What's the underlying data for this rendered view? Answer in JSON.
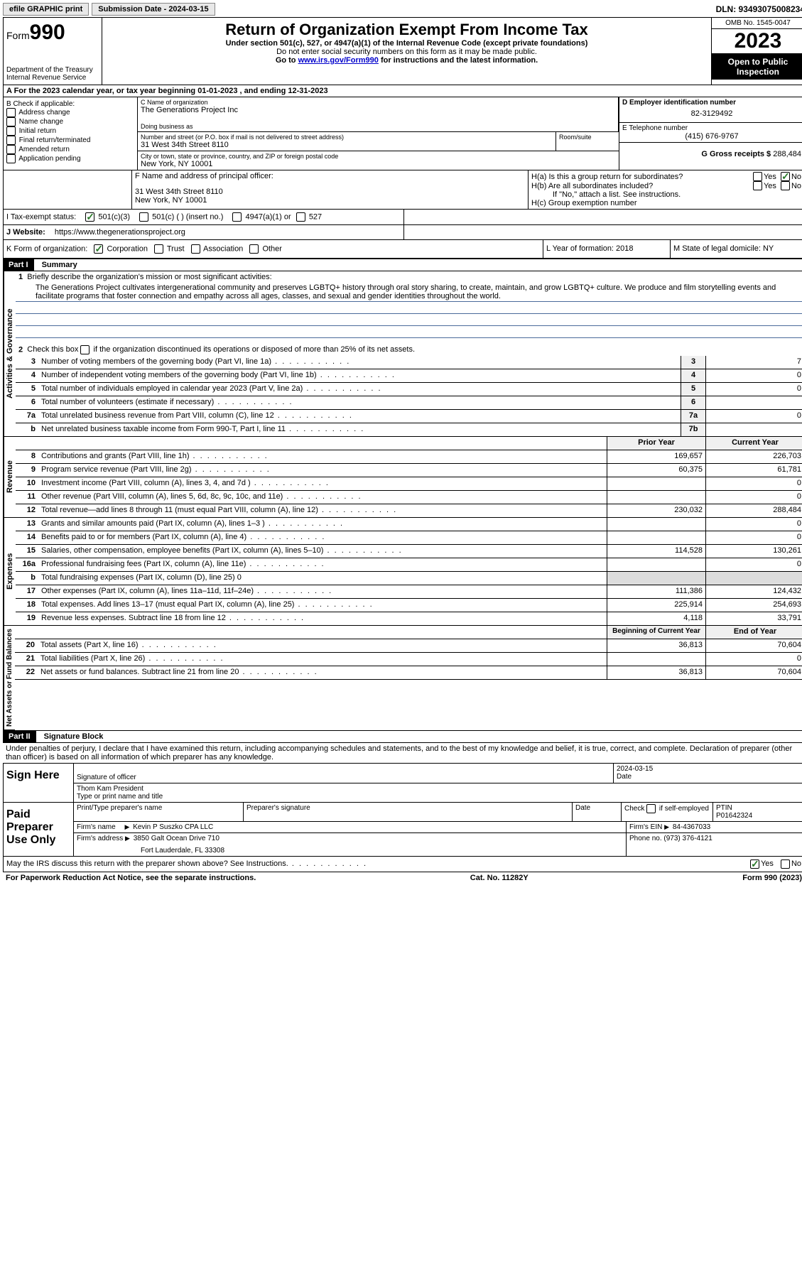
{
  "topbar": {
    "efile": "efile GRAPHIC print",
    "submission_label": "Submission Date - 2024-03-15",
    "dln": "DLN: 93493075008234"
  },
  "header": {
    "form_label": "Form",
    "form_num": "990",
    "dept": "Department of the Treasury",
    "irs": "Internal Revenue Service",
    "title": "Return of Organization Exempt From Income Tax",
    "sub1": "Under section 501(c), 527, or 4947(a)(1) of the Internal Revenue Code (except private foundations)",
    "sub2": "Do not enter social security numbers on this form as it may be made public.",
    "sub3_pre": "Go to ",
    "sub3_link": "www.irs.gov/Form990",
    "sub3_post": " for instructions and the latest information.",
    "omb": "OMB No. 1545-0047",
    "year": "2023",
    "inspection": "Open to Public Inspection"
  },
  "section_a": "A  For the 2023 calendar year, or tax year beginning 01-01-2023    , and ending 12-31-2023",
  "box_b": {
    "label": "B Check if applicable:",
    "opts": [
      "Address change",
      "Name change",
      "Initial return",
      "Final return/terminated",
      "Amended return",
      "Application pending"
    ]
  },
  "box_c": {
    "label": "C Name of organization",
    "name": "The Generations Project Inc",
    "dba": "Doing business as",
    "addr_label": "Number and street (or P.O. box if mail is not delivered to street address)",
    "room": "Room/suite",
    "addr": "31 West 34th Street 8110",
    "city_label": "City or town, state or province, country, and ZIP or foreign postal code",
    "city": "New York, NY  10001"
  },
  "box_d": {
    "label": "D Employer identification number",
    "ein": "82-3129492"
  },
  "box_e": {
    "label": "E Telephone number",
    "phone": "(415) 676-9767"
  },
  "box_g": {
    "label": "G Gross receipts $",
    "amount": "288,484"
  },
  "box_f": {
    "label": "F Name and address of principal officer:",
    "addr1": "31 West 34th Street 8110",
    "addr2": "New York, NY  10001"
  },
  "box_h": {
    "ha": "H(a)  Is this a group return for subordinates?",
    "hb": "H(b)  Are all subordinates included?",
    "hb_note": "If \"No,\" attach a list. See instructions.",
    "hc": "H(c)  Group exemption number",
    "yes": "Yes",
    "no": "No"
  },
  "box_i": {
    "label": "I    Tax-exempt status:",
    "o1": "501(c)(3)",
    "o2": "501(c) (  ) (insert no.)",
    "o3": "4947(a)(1) or",
    "o4": "527"
  },
  "box_j": {
    "label": "J   Website:",
    "url": "https://www.thegenerationsproject.org"
  },
  "box_k": {
    "label": "K Form of organization:",
    "o1": "Corporation",
    "o2": "Trust",
    "o3": "Association",
    "o4": "Other"
  },
  "box_l": "L Year of formation: 2018",
  "box_m": "M State of legal domicile: NY",
  "part1": {
    "header": "Part I",
    "title": "Summary"
  },
  "summary": {
    "l1_label": "Briefly describe the organization's mission or most significant activities:",
    "l1_text": "The Generations Project cultivates intergenerational community and preserves LGBTQ+ history through oral story sharing, to create, maintain, and grow LGBTQ+ culture. We produce and film storytelling events and facilitate programs that foster connection and empathy across all ages, classes, and sexual and gender identities throughout the world.",
    "l2": "Check this box      if the organization discontinued its operations or disposed of more than 25% of its net assets.",
    "lines_gov": [
      {
        "n": "3",
        "d": "Number of voting members of the governing body (Part VI, line 1a)",
        "b": "3",
        "v": "7"
      },
      {
        "n": "4",
        "d": "Number of independent voting members of the governing body (Part VI, line 1b)",
        "b": "4",
        "v": "0"
      },
      {
        "n": "5",
        "d": "Total number of individuals employed in calendar year 2023 (Part V, line 2a)",
        "b": "5",
        "v": "0"
      },
      {
        "n": "6",
        "d": "Total number of volunteers (estimate if necessary)",
        "b": "6",
        "v": ""
      },
      {
        "n": "7a",
        "d": "Total unrelated business revenue from Part VIII, column (C), line 12",
        "b": "7a",
        "v": "0"
      },
      {
        "n": "b",
        "d": "Net unrelated business taxable income from Form 990-T, Part I, line 11",
        "b": "7b",
        "v": ""
      }
    ],
    "prior": "Prior Year",
    "current": "Current Year",
    "lines_rev": [
      {
        "n": "8",
        "d": "Contributions and grants (Part VIII, line 1h)",
        "p": "169,657",
        "c": "226,703"
      },
      {
        "n": "9",
        "d": "Program service revenue (Part VIII, line 2g)",
        "p": "60,375",
        "c": "61,781"
      },
      {
        "n": "10",
        "d": "Investment income (Part VIII, column (A), lines 3, 4, and 7d )",
        "p": "",
        "c": "0"
      },
      {
        "n": "11",
        "d": "Other revenue (Part VIII, column (A), lines 5, 6d, 8c, 9c, 10c, and 11e)",
        "p": "",
        "c": "0"
      },
      {
        "n": "12",
        "d": "Total revenue—add lines 8 through 11 (must equal Part VIII, column (A), line 12)",
        "p": "230,032",
        "c": "288,484"
      }
    ],
    "lines_exp": [
      {
        "n": "13",
        "d": "Grants and similar amounts paid (Part IX, column (A), lines 1–3 )",
        "p": "",
        "c": "0"
      },
      {
        "n": "14",
        "d": "Benefits paid to or for members (Part IX, column (A), line 4)",
        "p": "",
        "c": "0"
      },
      {
        "n": "15",
        "d": "Salaries, other compensation, employee benefits (Part IX, column (A), lines 5–10)",
        "p": "114,528",
        "c": "130,261"
      },
      {
        "n": "16a",
        "d": "Professional fundraising fees (Part IX, column (A), line 11e)",
        "p": "",
        "c": "0"
      },
      {
        "n": "b",
        "d": "Total fundraising expenses (Part IX, column (D), line 25) 0",
        "p": null,
        "c": null
      },
      {
        "n": "17",
        "d": "Other expenses (Part IX, column (A), lines 11a–11d, 11f–24e)",
        "p": "111,386",
        "c": "124,432"
      },
      {
        "n": "18",
        "d": "Total expenses. Add lines 13–17 (must equal Part IX, column (A), line 25)",
        "p": "225,914",
        "c": "254,693"
      },
      {
        "n": "19",
        "d": "Revenue less expenses. Subtract line 18 from line 12",
        "p": "4,118",
        "c": "33,791"
      }
    ],
    "begin": "Beginning of Current Year",
    "end": "End of Year",
    "lines_net": [
      {
        "n": "20",
        "d": "Total assets (Part X, line 16)",
        "p": "36,813",
        "c": "70,604"
      },
      {
        "n": "21",
        "d": "Total liabilities (Part X, line 26)",
        "p": "",
        "c": "0"
      },
      {
        "n": "22",
        "d": "Net assets or fund balances. Subtract line 21 from line 20",
        "p": "36,813",
        "c": "70,604"
      }
    ],
    "side_gov": "Activities & Governance",
    "side_rev": "Revenue",
    "side_exp": "Expenses",
    "side_net": "Net Assets or Fund Balances"
  },
  "part2": {
    "header": "Part II",
    "title": "Signature Block",
    "perjury": "Under penalties of perjury, I declare that I have examined this return, including accompanying schedules and statements, and to the best of my knowledge and belief, it is true, correct, and complete. Declaration of preparer (other than officer) is based on all information of which preparer has any knowledge."
  },
  "sign": {
    "label": "Sign Here",
    "sig_officer": "Signature of officer",
    "date_label": "Date",
    "date": "2024-03-15",
    "officer": "Thom Kam President",
    "type_name": "Type or print name and title"
  },
  "preparer": {
    "label": "Paid Preparer Use Only",
    "h1": "Print/Type preparer's name",
    "h2": "Preparer's signature",
    "h3": "Date",
    "h4_pre": "Check",
    "h4_post": "if self-employed",
    "h5": "PTIN",
    "ptin": "P01642324",
    "firm_name_label": "Firm's name",
    "firm_name": "Kevin P Suszko CPA LLC",
    "firm_ein_label": "Firm's EIN",
    "firm_ein": "84-4367033",
    "firm_addr_label": "Firm's address",
    "firm_addr1": "3850 Galt Ocean Drive 710",
    "firm_addr2": "Fort Lauderdale, FL  33308",
    "phone_label": "Phone no.",
    "phone": "(973) 376-4121"
  },
  "discuss": {
    "text": "May the IRS discuss this return with the preparer shown above? See Instructions.",
    "yes": "Yes",
    "no": "No"
  },
  "footer": {
    "left": "For Paperwork Reduction Act Notice, see the separate instructions.",
    "center": "Cat. No. 11282Y",
    "right": "Form 990 (2023)"
  }
}
